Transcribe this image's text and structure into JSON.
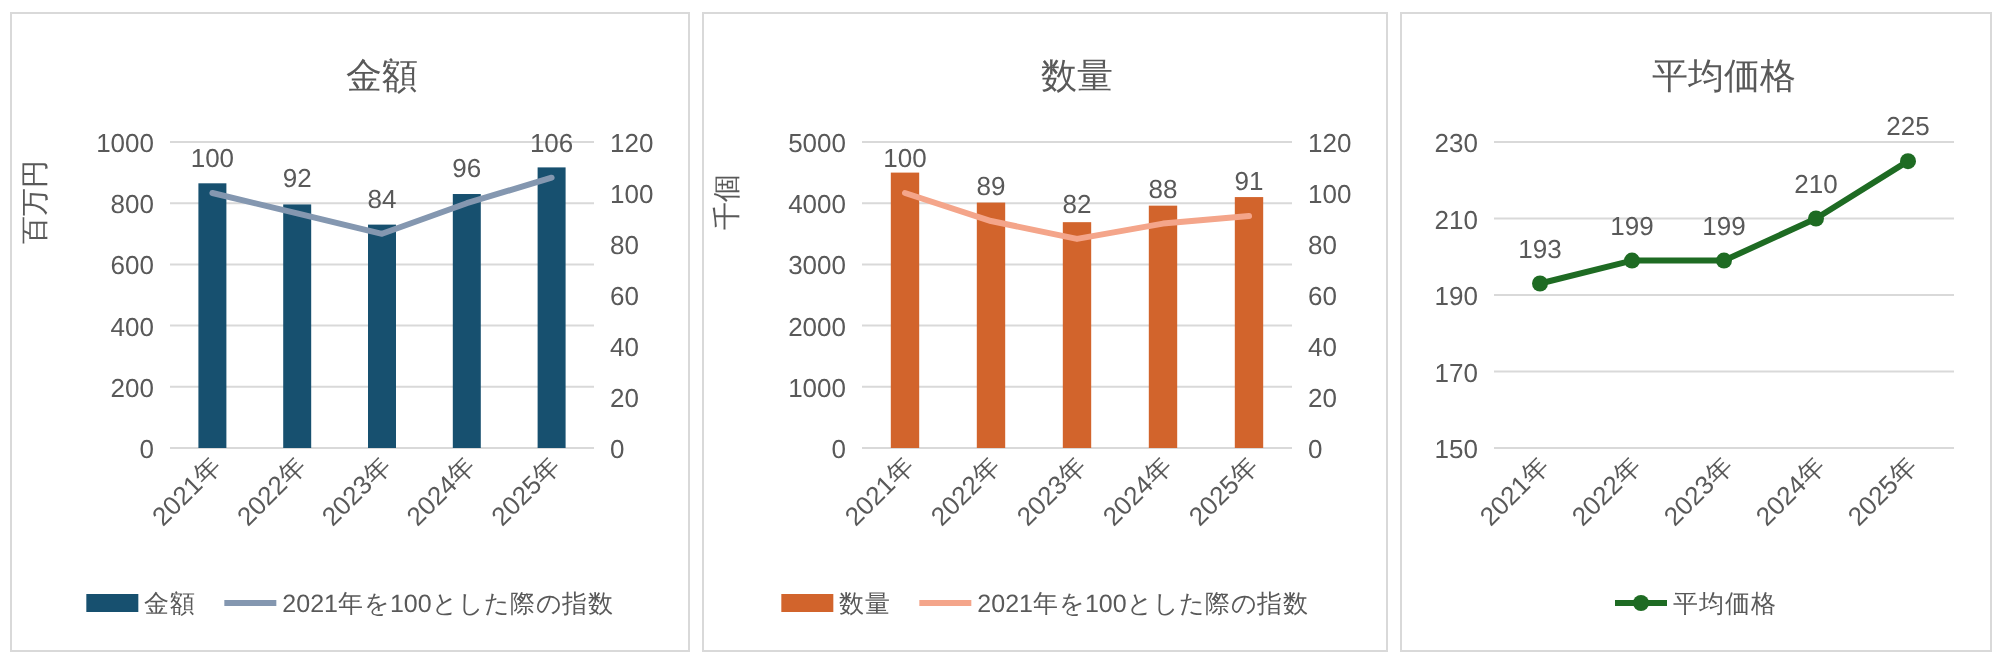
{
  "chart_data": [
    {
      "type": "bar",
      "title": "金額",
      "ylabel": "百万円",
      "categories": [
        "2021年",
        "2022年",
        "2023年",
        "2024年",
        "2025年"
      ],
      "series": [
        {
          "name": "金額",
          "color": "#17506f",
          "values": [
            865,
            796,
            730,
            830,
            917
          ]
        },
        {
          "name": "2021年を100とした際の指数",
          "type": "line",
          "axis": "y2",
          "color": "#8497b0",
          "values": [
            100,
            92,
            84,
            96,
            106
          ],
          "value_labels": [
            "100",
            "92",
            "84",
            "96",
            "106"
          ]
        }
      ],
      "ylim": [
        0,
        1000
      ],
      "yticks": [
        0,
        200,
        400,
        600,
        800,
        1000
      ],
      "y2lim": [
        0,
        120
      ],
      "y2ticks": [
        0,
        20,
        40,
        60,
        80,
        100,
        120
      ],
      "grid": "y",
      "legend": "bottom"
    },
    {
      "type": "bar",
      "title": "数量",
      "ylabel": "千個",
      "categories": [
        "2021年",
        "2022年",
        "2023年",
        "2024年",
        "2025年"
      ],
      "series": [
        {
          "name": "数量",
          "color": "#d2642c",
          "values": [
            4500,
            4010,
            3690,
            3960,
            4100
          ]
        },
        {
          "name": "2021年を100とした際の指数",
          "type": "line",
          "axis": "y2",
          "color": "#f4a58a",
          "values": [
            100,
            89,
            82,
            88,
            91
          ],
          "value_labels": [
            "100",
            "89",
            "82",
            "88",
            "91"
          ]
        }
      ],
      "ylim": [
        0,
        5000
      ],
      "yticks": [
        0,
        1000,
        2000,
        3000,
        4000,
        5000
      ],
      "y2lim": [
        0,
        120
      ],
      "y2ticks": [
        0,
        20,
        40,
        60,
        80,
        100,
        120
      ],
      "grid": "y",
      "legend": "bottom"
    },
    {
      "type": "line",
      "title": "平均価格",
      "categories": [
        "2021年",
        "2022年",
        "2023年",
        "2024年",
        "2025年"
      ],
      "series": [
        {
          "name": "平均価格",
          "color": "#1e6b23",
          "values": [
            193,
            199,
            199,
            210,
            225
          ]
        }
      ],
      "marker": "circle",
      "data_labels": true,
      "ylim": [
        150,
        230
      ],
      "yticks": [
        150,
        170,
        190,
        210,
        230
      ],
      "grid": "y",
      "legend": "bottom"
    }
  ]
}
